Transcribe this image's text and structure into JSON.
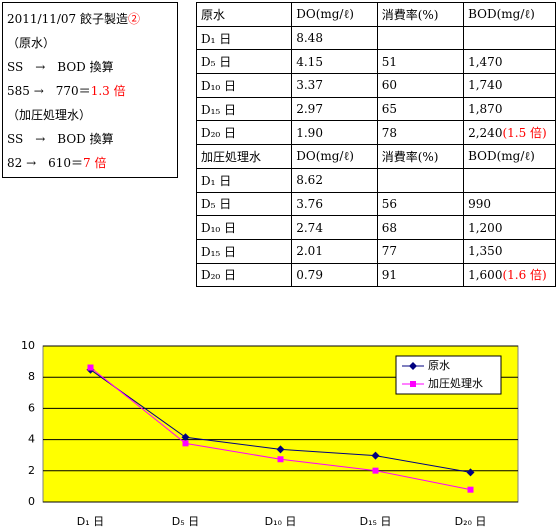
{
  "note": {
    "lines": [
      [
        "2011/11/07 餃子製造",
        "②"
      ],
      [
        "（原水）"
      ],
      [
        "SS　→　BOD 換算"
      ],
      [
        "585 →　770＝",
        "1.3 倍"
      ],
      [
        "（加圧処理水）"
      ],
      [
        "SS　→　BOD 換算"
      ],
      [
        "82 →　610＝",
        "7 倍"
      ]
    ]
  },
  "table": {
    "sections": [
      {
        "rows": [
          [
            "原水",
            "DO(mg/ℓ)",
            "消費率(%)",
            "BOD(mg/ℓ)"
          ],
          [
            "D₁ 日",
            "8.48"
          ],
          [
            "D₅ 日",
            "4.15",
            "51",
            "1,470"
          ],
          [
            "D₁₀ 日",
            "3.37",
            "60",
            "1,740"
          ],
          [
            "D₁₅ 日",
            "2.97",
            "65",
            "1,870"
          ],
          [
            "D₂₀ 日",
            "1.90",
            "78",
            "2,240"
          ]
        ],
        "highlight": "(1.5 倍)"
      },
      {
        "rows": [
          [
            "加圧処理水",
            "DO(mg/ℓ)",
            "消費率(%)",
            "BOD(mg/ℓ)"
          ],
          [
            "D₁ 日",
            "8.62"
          ],
          [
            "D₅ 日",
            "3.76",
            "56",
            "990"
          ],
          [
            "D₁₀ 日",
            "2.74",
            "68",
            "1,200"
          ],
          [
            "D₁₅ 日",
            "2.01",
            "77",
            "1,350"
          ],
          [
            "D₂₀ 日",
            "0.79",
            "91",
            "1,600"
          ]
        ],
        "highlight": "(1.6 倍)"
      }
    ]
  },
  "chart_data": {
    "type": "line",
    "categories": [
      "D₁ 日",
      "D₅ 日",
      "D₁₀ 日",
      "D₁₅ 日",
      "D₂₀ 日"
    ],
    "series": [
      {
        "name": "原水",
        "color": "#000080",
        "marker": "diamond",
        "values": [
          8.48,
          4.15,
          3.37,
          2.97,
          1.9
        ]
      },
      {
        "name": "加圧処理水",
        "color": "#ff00ff",
        "marker": "square",
        "values": [
          8.62,
          3.76,
          2.74,
          2.01,
          0.79
        ]
      }
    ],
    "ylim": [
      0,
      10
    ],
    "yticks": [
      0,
      2,
      4,
      6,
      8,
      10
    ],
    "grid": true,
    "plot_background": "#ffff00",
    "legend": "top-right"
  }
}
